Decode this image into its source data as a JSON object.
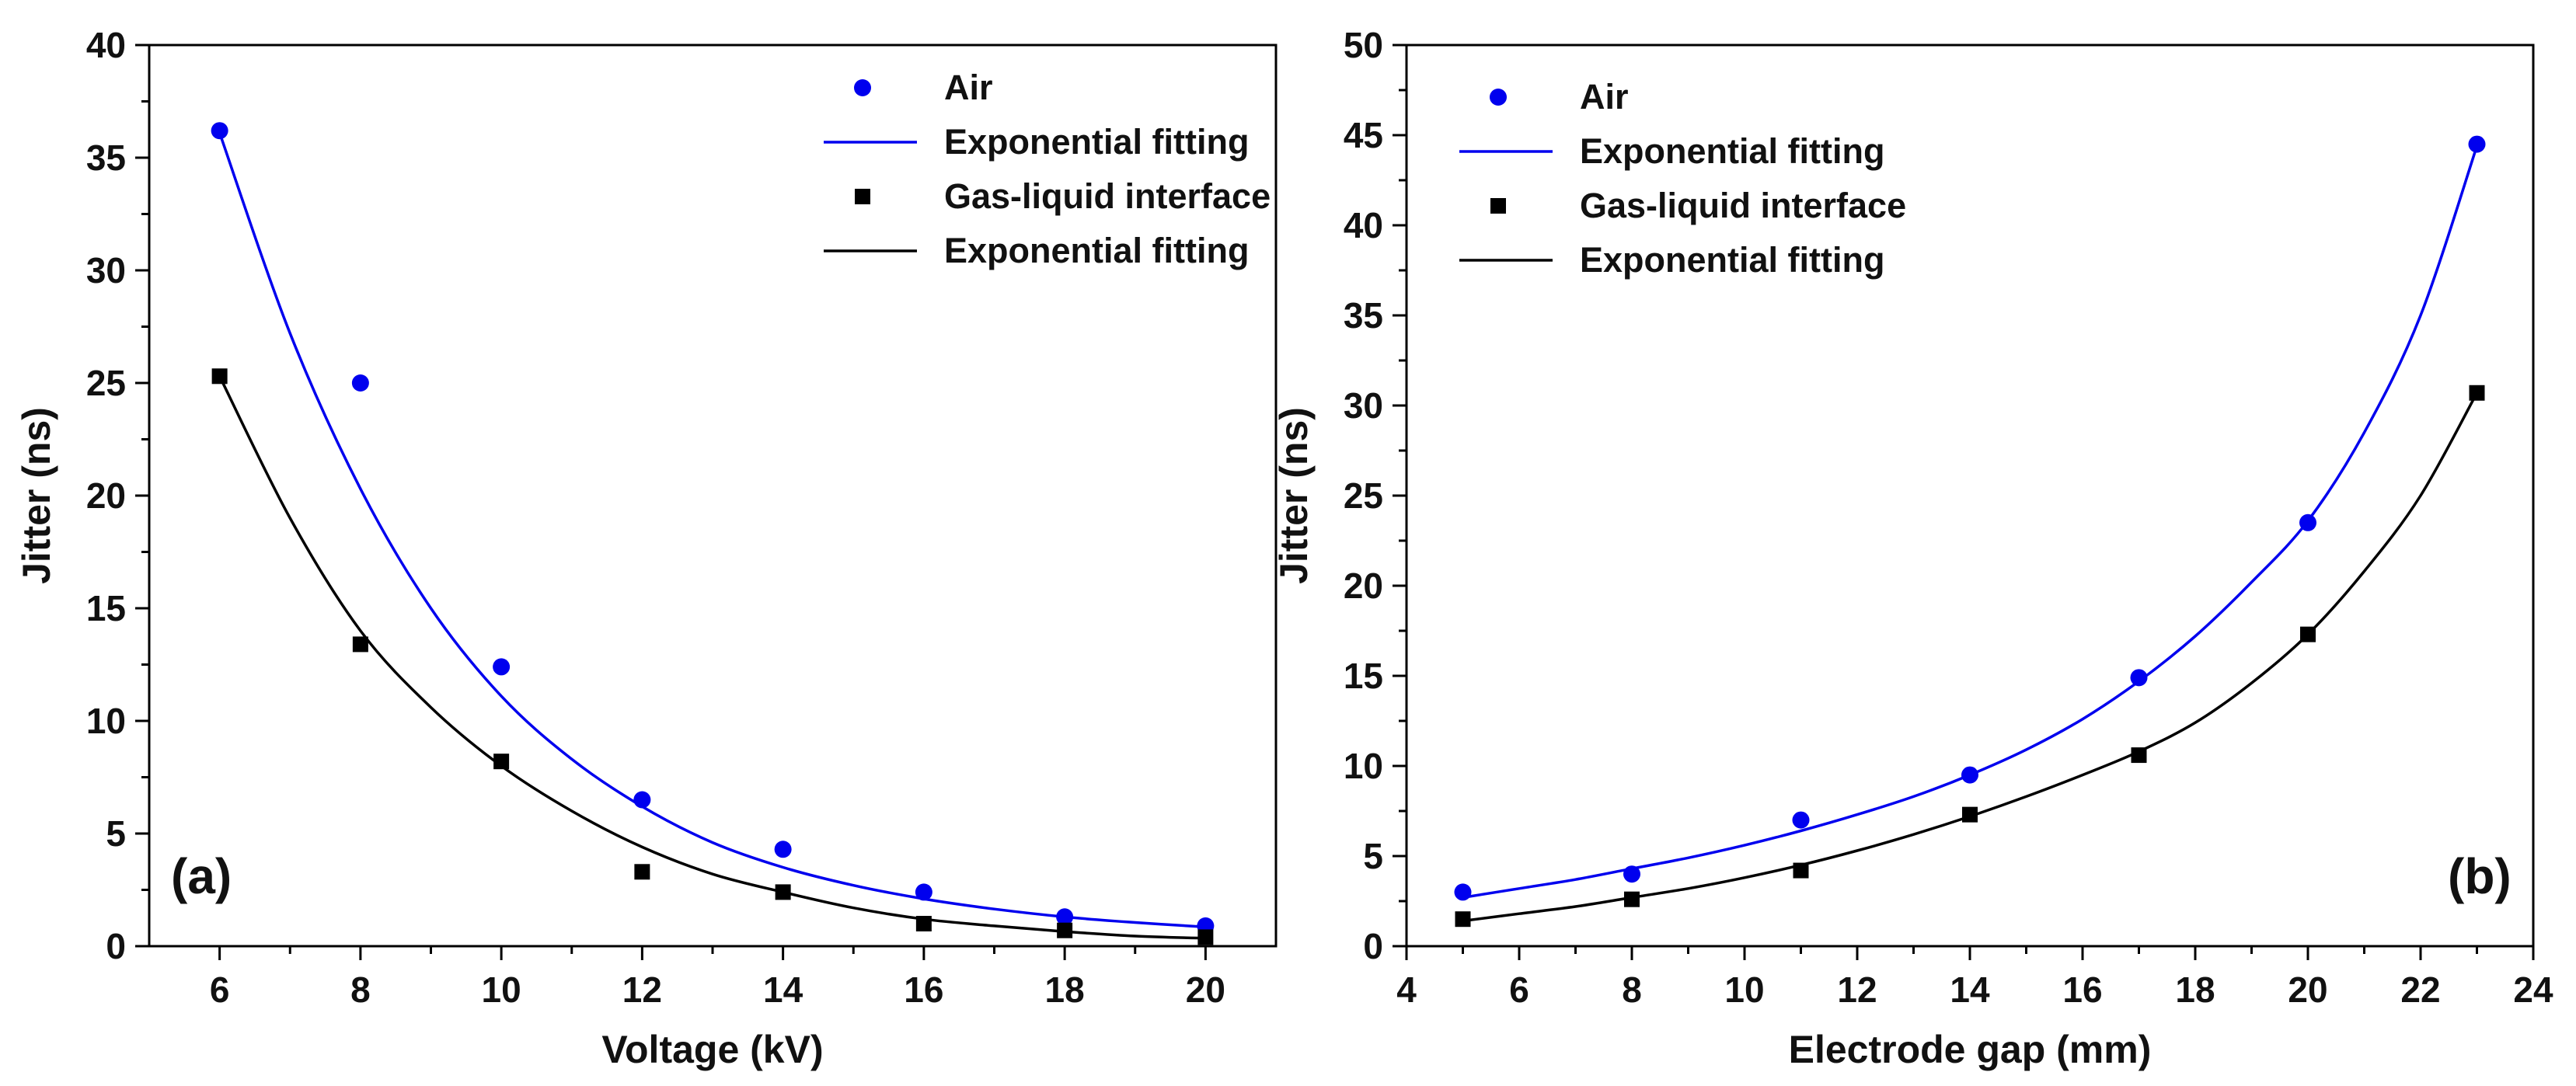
{
  "chart_data": [
    {
      "type": "scatter",
      "panel_label": "(a)",
      "xlabel": "Voltage (kV)",
      "ylabel": "Jitter (ns)",
      "xlim": [
        5,
        21
      ],
      "ylim": [
        0,
        40
      ],
      "xticks": [
        6,
        8,
        10,
        12,
        14,
        16,
        18,
        20
      ],
      "yticks": [
        0,
        5,
        10,
        15,
        20,
        25,
        30,
        35,
        40
      ],
      "legend_position": "top-right",
      "series": [
        {
          "name": "Air",
          "kind": "points",
          "marker": "circle",
          "color": "#0000ee",
          "x": [
            6,
            8,
            10,
            12,
            14,
            16,
            18,
            20
          ],
          "y": [
            36.2,
            25.0,
            12.4,
            6.5,
            4.3,
            2.4,
            1.3,
            0.9
          ]
        },
        {
          "name": "Exponential fitting",
          "kind": "fit",
          "color": "#0000ee",
          "x": [
            6,
            7,
            8,
            9,
            10,
            11,
            12,
            13,
            14,
            15,
            16,
            17,
            18,
            19,
            20
          ],
          "y": [
            36.1,
            27.2,
            20.3,
            15.0,
            11.1,
            8.3,
            6.2,
            4.6,
            3.5,
            2.7,
            2.1,
            1.65,
            1.3,
            1.05,
            0.85
          ]
        },
        {
          "name": "Gas-liquid interface",
          "kind": "points",
          "marker": "square",
          "color": "#000000",
          "x": [
            6,
            8,
            10,
            12,
            14,
            16,
            18,
            20
          ],
          "y": [
            25.3,
            13.4,
            8.2,
            3.3,
            2.4,
            1.0,
            0.7,
            0.4
          ]
        },
        {
          "name": "Exponential fitting",
          "kind": "fit",
          "color": "#000000",
          "x": [
            6,
            7,
            8,
            9,
            10,
            11,
            12,
            13,
            14,
            15,
            16,
            17,
            18,
            19,
            20
          ],
          "y": [
            25.3,
            19.0,
            14.0,
            10.6,
            8.0,
            6.0,
            4.4,
            3.2,
            2.4,
            1.7,
            1.2,
            0.9,
            0.65,
            0.45,
            0.35
          ]
        }
      ]
    },
    {
      "type": "scatter",
      "panel_label": "(b)",
      "xlabel": "Electrode gap (mm)",
      "ylabel": "Jitter (ns)",
      "xlim": [
        4,
        24
      ],
      "ylim": [
        0,
        50
      ],
      "xticks": [
        4,
        6,
        8,
        10,
        12,
        14,
        16,
        18,
        20,
        22,
        24
      ],
      "yticks": [
        0,
        5,
        10,
        15,
        20,
        25,
        30,
        35,
        40,
        45,
        50
      ],
      "legend_position": "top-left",
      "series": [
        {
          "name": "Air",
          "kind": "points",
          "marker": "circle",
          "color": "#0000ee",
          "x": [
            5,
            8,
            11,
            14,
            17,
            20,
            23
          ],
          "y": [
            3.0,
            4.0,
            7.0,
            9.5,
            14.9,
            23.5,
            44.5
          ]
        },
        {
          "name": "Exponential fitting",
          "kind": "fit",
          "color": "#0000ee",
          "x": [
            5,
            6,
            7,
            8,
            9,
            10,
            11,
            12,
            13,
            14,
            15,
            16,
            17,
            18,
            19,
            20,
            21,
            22,
            23
          ],
          "y": [
            2.7,
            3.2,
            3.7,
            4.3,
            4.9,
            5.6,
            6.4,
            7.3,
            8.3,
            9.5,
            10.9,
            12.6,
            14.7,
            17.2,
            20.2,
            23.6,
            28.5,
            35.0,
            44.4
          ]
        },
        {
          "name": "Gas-liquid interface",
          "kind": "points",
          "marker": "square",
          "color": "#000000",
          "x": [
            5,
            8,
            11,
            14,
            17,
            20,
            23
          ],
          "y": [
            1.5,
            2.6,
            4.2,
            7.3,
            10.6,
            17.3,
            30.7
          ]
        },
        {
          "name": "Exponential fitting",
          "kind": "fit",
          "color": "#000000",
          "x": [
            5,
            6,
            7,
            8,
            9,
            10,
            11,
            12,
            13,
            14,
            15,
            16,
            17,
            18,
            19,
            20,
            21,
            22,
            23
          ],
          "y": [
            1.4,
            1.8,
            2.2,
            2.7,
            3.2,
            3.8,
            4.5,
            5.3,
            6.2,
            7.2,
            8.3,
            9.5,
            10.8,
            12.4,
            14.6,
            17.3,
            20.8,
            25.0,
            30.7
          ]
        }
      ]
    }
  ]
}
